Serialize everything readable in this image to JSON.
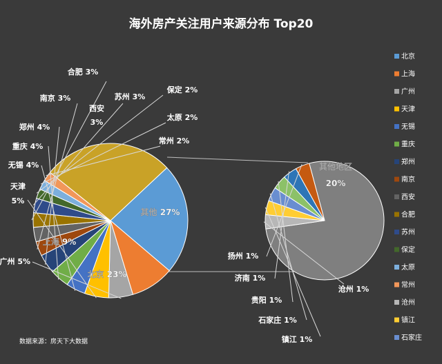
{
  "chart_data": {
    "type": "pie",
    "title": "海外房产关注用户来源分布 Top20",
    "source": "数据来源：房天下大数据",
    "main_pie": {
      "slices": [
        {
          "name": "北京",
          "value": 23,
          "label": "北京 23%",
          "color": "#5b9bd5"
        },
        {
          "name": "上海",
          "value": 9,
          "label": "上海 9%",
          "color": "#ed7d31"
        },
        {
          "name": "广州",
          "value": 5,
          "label": "广州 5%",
          "color": "#a5a5a5"
        },
        {
          "name": "天津",
          "value": 5,
          "label": "天津\n5%",
          "color": "#ffc000"
        },
        {
          "name": "无锡",
          "value": 4,
          "label": "无锡 4%",
          "color": "#4472c4"
        },
        {
          "name": "重庆",
          "value": 4,
          "label": "重庆 4%",
          "color": "#70ad47"
        },
        {
          "name": "郑州",
          "value": 4,
          "label": "郑州 4%",
          "color": "#264478"
        },
        {
          "name": "南京",
          "value": 3,
          "label": "南京 3%",
          "color": "#9e480e"
        },
        {
          "name": "西安",
          "value": 3,
          "label": "西安\n3%",
          "color": "#636363"
        },
        {
          "name": "合肥",
          "value": 3,
          "label": "合肥 3%",
          "color": "#997300"
        },
        {
          "name": "苏州",
          "value": 3,
          "label": "苏州 3%",
          "color": "#2f4b8a"
        },
        {
          "name": "保定",
          "value": 2,
          "label": "保定 2%",
          "color": "#43682b"
        },
        {
          "name": "太原",
          "value": 2,
          "label": "太原 2%",
          "color": "#7cafdd"
        },
        {
          "name": "常州",
          "value": 2,
          "label": "常州 2%",
          "color": "#f1975a"
        },
        {
          "name": "其他",
          "value": 27,
          "label": "其他 27%",
          "color": "#c9a227"
        }
      ]
    },
    "secondary_pie": {
      "slices": [
        {
          "name": "其他地区",
          "value": 20,
          "label": "其他地区\n20%",
          "color": "#7f7f7f"
        },
        {
          "name": "沧州",
          "value": 1,
          "label": "沧州 1%",
          "color": "#b7b7b7"
        },
        {
          "name": "镇江",
          "value": 1,
          "label": "镇江 1%",
          "color": "#ffcd33"
        },
        {
          "name": "石家庄",
          "value": 1,
          "label": "石家庄 1%",
          "color": "#698ed0"
        },
        {
          "name": "贵阳",
          "value": 1,
          "label": "贵阳 1%",
          "color": "#8cc168"
        },
        {
          "name": "济南",
          "value": 1,
          "label": "济南 1%",
          "color": "#2e75b6"
        },
        {
          "name": "扬州",
          "value": 1,
          "label": "扬州 1%",
          "color": "#c55a11"
        }
      ]
    },
    "legend": [
      {
        "name": "北京",
        "color": "#5b9bd5"
      },
      {
        "name": "上海",
        "color": "#ed7d31"
      },
      {
        "name": "广州",
        "color": "#a5a5a5"
      },
      {
        "name": "天津",
        "color": "#ffc000"
      },
      {
        "name": "无锡",
        "color": "#4472c4"
      },
      {
        "name": "重庆",
        "color": "#70ad47"
      },
      {
        "name": "郑州",
        "color": "#264478"
      },
      {
        "name": "南京",
        "color": "#9e480e"
      },
      {
        "name": "西安",
        "color": "#636363"
      },
      {
        "name": "合肥",
        "color": "#997300"
      },
      {
        "name": "苏州",
        "color": "#2f4b8a"
      },
      {
        "name": "保定",
        "color": "#43682b"
      },
      {
        "name": "太原",
        "color": "#7cafdd"
      },
      {
        "name": "常州",
        "color": "#f1975a"
      },
      {
        "name": "沧州",
        "color": "#b7b7b7"
      },
      {
        "name": "镇江",
        "color": "#ffcd33"
      },
      {
        "name": "石家庄",
        "color": "#698ed0"
      }
    ]
  }
}
